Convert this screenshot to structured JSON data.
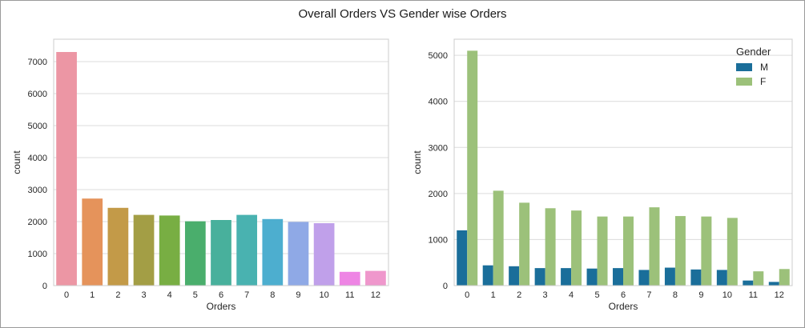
{
  "suptitle": "Overall Orders VS Gender wise Orders",
  "chart_data": [
    {
      "type": "bar",
      "title": "",
      "xlabel": "Orders",
      "ylabel": "count",
      "ylim": [
        0,
        7700
      ],
      "yticks": [
        0,
        1000,
        2000,
        3000,
        4000,
        5000,
        6000,
        7000
      ],
      "categories": [
        "0",
        "1",
        "2",
        "3",
        "4",
        "5",
        "6",
        "7",
        "8",
        "9",
        "10",
        "11",
        "12"
      ],
      "values": [
        7300,
        2720,
        2430,
        2210,
        2190,
        2010,
        2050,
        2210,
        2080,
        1990,
        1950,
        430,
        460
      ],
      "colors": [
        "#ec96a4",
        "#e5935b",
        "#c39a48",
        "#a39e45",
        "#78ae43",
        "#4aae6c",
        "#48b09c",
        "#49b2b0",
        "#4daecf",
        "#8fa9e6",
        "#c0a0ea",
        "#ee85e4",
        "#ef97cc"
      ],
      "grid": true
    },
    {
      "type": "bar",
      "title": "",
      "xlabel": "Orders",
      "ylabel": "count",
      "ylim": [
        0,
        5350
      ],
      "yticks": [
        0,
        1000,
        2000,
        3000,
        4000,
        5000
      ],
      "categories": [
        "0",
        "1",
        "2",
        "3",
        "4",
        "5",
        "6",
        "7",
        "8",
        "9",
        "10",
        "11",
        "12"
      ],
      "series": [
        {
          "name": "M",
          "color": "#1a6e9a",
          "values": [
            1200,
            440,
            420,
            380,
            380,
            370,
            380,
            340,
            390,
            350,
            340,
            110,
            80
          ]
        },
        {
          "name": "F",
          "color": "#9cc17a",
          "values": [
            5100,
            2060,
            1800,
            1680,
            1630,
            1500,
            1500,
            1700,
            1510,
            1500,
            1470,
            310,
            360
          ]
        }
      ],
      "legend": {
        "title": "Gender",
        "placement": "top-right"
      },
      "grid": true
    }
  ]
}
